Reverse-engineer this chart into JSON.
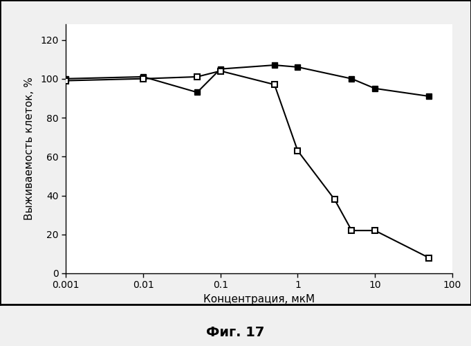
{
  "title": "Фиг. 17",
  "xlabel": "Концентрация, мкМ",
  "ylabel": "Выживаемость клеток, %",
  "ylim": [
    0,
    128
  ],
  "yticks": [
    0,
    20,
    40,
    60,
    80,
    100,
    120
  ],
  "series_filled": {
    "x": [
      0.001,
      0.01,
      0.05,
      0.1,
      0.5,
      1.0,
      5.0,
      10.0,
      50.0
    ],
    "y": [
      100,
      101,
      93,
      105,
      107,
      106,
      100,
      95,
      91
    ],
    "color": "#000000",
    "marker": "s",
    "filled": true
  },
  "series_open": {
    "x": [
      0.001,
      0.01,
      0.05,
      0.1,
      0.5,
      1.0,
      3.0,
      5.0,
      10.0,
      50.0
    ],
    "y": [
      99,
      100,
      101,
      104,
      97,
      63,
      38,
      22,
      22,
      8
    ],
    "color": "#000000",
    "marker": "s",
    "filled": false
  },
  "background_color": "#f0f0f0",
  "plot_bg_color": "#ffffff",
  "border_color": "#000000",
  "font_family": "DejaVu Sans",
  "fig_width": 6.81,
  "fig_height": 5.0,
  "dpi": 100
}
